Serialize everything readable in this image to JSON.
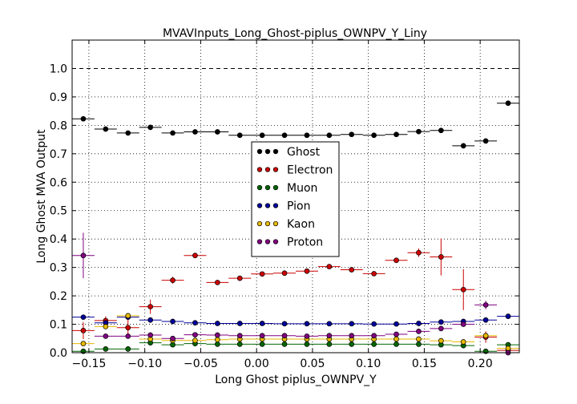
{
  "chart_data": {
    "type": "scatter",
    "title": "MVAVInputs_Long_Ghost-piplus_OWNPV_Y_Liny",
    "xlabel": "Long Ghost piplus_OWNPV_Y",
    "ylabel": "Long Ghost MVA Output",
    "xlim": [
      -0.165,
      0.235
    ],
    "ylim": [
      0.0,
      1.1
    ],
    "xticks": [
      "−0.15",
      "−0.10",
      "−0.05",
      "0.00",
      "0.05",
      "0.10",
      "0.15",
      "0.20"
    ],
    "xtick_values": [
      -0.15,
      -0.1,
      -0.05,
      0.0,
      0.05,
      0.1,
      0.15,
      0.2
    ],
    "yticks": [
      "0.0",
      "0.1",
      "0.2",
      "0.3",
      "0.4",
      "0.5",
      "0.6",
      "0.7",
      "0.8",
      "0.9",
      "1.0"
    ],
    "ytick_values": [
      0.0,
      0.1,
      0.2,
      0.3,
      0.4,
      0.5,
      0.6,
      0.7,
      0.8,
      0.9,
      1.0
    ],
    "grid": true,
    "reference_line_y": 1.0,
    "legend_position": "center",
    "bin_half_width": 0.01,
    "x": [
      -0.155,
      -0.135,
      -0.115,
      -0.095,
      -0.075,
      -0.055,
      -0.035,
      -0.015,
      0.005,
      0.025,
      0.045,
      0.065,
      0.085,
      0.105,
      0.125,
      0.145,
      0.165,
      0.185,
      0.205,
      0.225
    ],
    "series": [
      {
        "name": "Ghost",
        "color": "#000000",
        "values": [
          0.823,
          0.787,
          0.773,
          0.793,
          0.773,
          0.777,
          0.777,
          0.765,
          0.765,
          0.765,
          0.765,
          0.765,
          0.768,
          0.765,
          0.768,
          0.778,
          0.782,
          0.728,
          0.745,
          0.878
        ],
        "errors": [
          0.005,
          0.005,
          0.004,
          0.004,
          0.004,
          0.003,
          0.003,
          0.003,
          0.003,
          0.003,
          0.003,
          0.003,
          0.003,
          0.003,
          0.003,
          0.003,
          0.004,
          0.005,
          0.006,
          0.006
        ]
      },
      {
        "name": "Electron",
        "color": "#cc0000",
        "values": [
          0.078,
          0.113,
          0.088,
          0.162,
          0.255,
          0.342,
          0.247,
          0.262,
          0.277,
          0.28,
          0.287,
          0.303,
          0.292,
          0.278,
          0.325,
          0.352,
          0.337,
          0.222,
          0.055,
          0.008
        ],
        "errors": [
          0.03,
          0.015,
          0.035,
          0.025,
          0.012,
          0.006,
          0.006,
          0.006,
          0.005,
          0.005,
          0.005,
          0.005,
          0.005,
          0.005,
          0.007,
          0.015,
          0.065,
          0.072,
          0.02,
          0.004
        ]
      },
      {
        "name": "Muon",
        "color": "#006600",
        "values": [
          0.005,
          0.013,
          0.013,
          0.035,
          0.028,
          0.032,
          0.03,
          0.03,
          0.03,
          0.03,
          0.03,
          0.03,
          0.03,
          0.03,
          0.03,
          0.03,
          0.028,
          0.025,
          0.005,
          0.028
        ],
        "errors": [
          0.002,
          0.002,
          0.002,
          0.002,
          0.002,
          0.002,
          0.002,
          0.002,
          0.002,
          0.002,
          0.002,
          0.002,
          0.002,
          0.002,
          0.002,
          0.002,
          0.002,
          0.002,
          0.002,
          0.002
        ]
      },
      {
        "name": "Pion",
        "color": "#000099",
        "values": [
          0.125,
          0.105,
          0.125,
          0.115,
          0.11,
          0.105,
          0.103,
          0.103,
          0.103,
          0.102,
          0.102,
          0.102,
          0.102,
          0.101,
          0.101,
          0.103,
          0.108,
          0.11,
          0.115,
          0.128
        ],
        "errors": [
          0.004,
          0.003,
          0.003,
          0.003,
          0.002,
          0.002,
          0.002,
          0.002,
          0.002,
          0.002,
          0.002,
          0.002,
          0.002,
          0.002,
          0.002,
          0.002,
          0.002,
          0.003,
          0.003,
          0.004
        ]
      },
      {
        "name": "Kaon",
        "color": "#e6b800",
        "values": [
          0.032,
          0.092,
          0.13,
          0.048,
          0.043,
          0.043,
          0.046,
          0.048,
          0.048,
          0.048,
          0.048,
          0.048,
          0.048,
          0.048,
          0.048,
          0.048,
          0.042,
          0.038,
          0.06,
          0.015
        ],
        "errors": [
          0.002,
          0.002,
          0.002,
          0.002,
          0.002,
          0.002,
          0.002,
          0.002,
          0.002,
          0.002,
          0.002,
          0.002,
          0.002,
          0.002,
          0.002,
          0.002,
          0.002,
          0.002,
          0.002,
          0.002
        ]
      },
      {
        "name": "Proton",
        "color": "#800080",
        "values": [
          0.342,
          0.058,
          0.058,
          0.062,
          0.05,
          0.063,
          0.062,
          0.06,
          0.06,
          0.06,
          0.058,
          0.06,
          0.06,
          0.06,
          0.065,
          0.075,
          0.085,
          0.1,
          0.168,
          0.0
        ],
        "errors": [
          0.08,
          0.004,
          0.003,
          0.003,
          0.003,
          0.002,
          0.002,
          0.002,
          0.002,
          0.002,
          0.002,
          0.002,
          0.002,
          0.002,
          0.002,
          0.002,
          0.003,
          0.004,
          0.015,
          0.0
        ]
      }
    ]
  }
}
